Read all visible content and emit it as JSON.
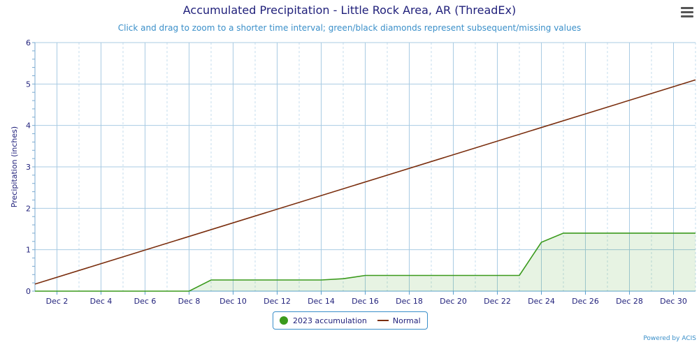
{
  "chart_data": {
    "type": "area",
    "title": "Accumulated Precipitation - Little Rock Area, AR (ThreadEx)",
    "subtitle": "Click and drag to zoom to a shorter time interval; green/black diamonds represent subsequent/missing values",
    "ylabel": "Precipitation (inches)",
    "ylim": [
      0,
      6
    ],
    "xlim": [
      1,
      31
    ],
    "yticks": [
      "0",
      "1",
      "2",
      "3",
      "4",
      "5",
      "6"
    ],
    "xticks": [
      {
        "day": 2,
        "label": "Dec 2"
      },
      {
        "day": 4,
        "label": "Dec 4"
      },
      {
        "day": 6,
        "label": "Dec 6"
      },
      {
        "day": 8,
        "label": "Dec 8"
      },
      {
        "day": 10,
        "label": "Dec 10"
      },
      {
        "day": 12,
        "label": "Dec 12"
      },
      {
        "day": 14,
        "label": "Dec 14"
      },
      {
        "day": 16,
        "label": "Dec 16"
      },
      {
        "day": 18,
        "label": "Dec 18"
      },
      {
        "day": 20,
        "label": "Dec 20"
      },
      {
        "day": 22,
        "label": "Dec 22"
      },
      {
        "day": 24,
        "label": "Dec 24"
      },
      {
        "day": 26,
        "label": "Dec 26"
      },
      {
        "day": 28,
        "label": "Dec 28"
      },
      {
        "day": 30,
        "label": "Dec 30"
      }
    ],
    "series": [
      {
        "name": "2023 accumulation",
        "color": "#3a9a1c",
        "x": [
          1,
          2,
          3,
          4,
          5,
          6,
          7,
          8,
          9,
          10,
          11,
          12,
          13,
          14,
          15,
          16,
          17,
          18,
          19,
          20,
          21,
          22,
          23,
          24,
          25,
          26,
          27,
          28,
          29,
          30,
          31
        ],
        "values": [
          0,
          0,
          0,
          0,
          0,
          0,
          0,
          0,
          0.27,
          0.27,
          0.27,
          0.27,
          0.27,
          0.27,
          0.3,
          0.38,
          0.38,
          0.38,
          0.38,
          0.38,
          0.38,
          0.38,
          0.38,
          1.18,
          1.4,
          1.4,
          1.4,
          1.4,
          1.4,
          1.4,
          1.4
        ]
      },
      {
        "name": "Normal",
        "color": "#7a2e0e",
        "x": [
          1,
          31
        ],
        "values": [
          0.17,
          5.1
        ]
      }
    ],
    "grid": true,
    "legend_position": "bottom-center"
  },
  "credit": "Powered by ACIS",
  "menu_icon": "hamburger-icon"
}
